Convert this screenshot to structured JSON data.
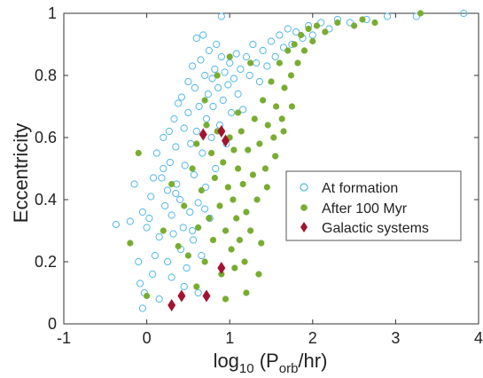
{
  "chart_data": {
    "type": "scatter",
    "xlabel_base": "log",
    "xlabel_sub": "10",
    "xlabel_mid": " (P",
    "xlabel_sub2": "orb",
    "xlabel_end": "/hr)",
    "ylabel": "Eccentricity",
    "xlim": [
      -1,
      4
    ],
    "ylim": [
      0,
      1
    ],
    "xticks": [
      -1,
      0,
      1,
      2,
      3,
      4
    ],
    "yticks": [
      0,
      0.2,
      0.4,
      0.6,
      0.8,
      1
    ],
    "xtick_labels": [
      "-1",
      "0",
      "1",
      "2",
      "3",
      "4"
    ],
    "ytick_labels": [
      "0",
      "0.2",
      "0.4",
      "0.6",
      "0.8",
      "1"
    ],
    "legend_position": "right-middle",
    "colors": {
      "formation": "#4fb8e6",
      "after": "#78ad30",
      "galactic": "#a2142f"
    },
    "series": [
      {
        "name": "At formation",
        "marker": "open-circle",
        "points": [
          [
            -0.37,
            0.32
          ],
          [
            -0.2,
            0.33
          ],
          [
            -0.15,
            0.45
          ],
          [
            -0.1,
            0.2
          ],
          [
            -0.05,
            0.36
          ],
          [
            0.0,
            0.31
          ],
          [
            0.03,
            0.34
          ],
          [
            0.05,
            0.41
          ],
          [
            -0.03,
            0.1
          ],
          [
            -0.08,
            0.13
          ],
          [
            0.07,
            0.16
          ],
          [
            0.1,
            0.22
          ],
          [
            0.12,
            0.55
          ],
          [
            0.15,
            0.28
          ],
          [
            0.18,
            0.47
          ],
          [
            0.2,
            0.6
          ],
          [
            0.22,
            0.38
          ],
          [
            0.25,
            0.43
          ],
          [
            0.27,
            0.62
          ],
          [
            0.28,
            0.52
          ],
          [
            0.3,
            0.35
          ],
          [
            0.32,
            0.29
          ],
          [
            0.33,
            0.66
          ],
          [
            0.35,
            0.57
          ],
          [
            0.36,
            0.45
          ],
          [
            0.38,
            0.71
          ],
          [
            0.4,
            0.4
          ],
          [
            0.41,
            0.24
          ],
          [
            0.42,
            0.73
          ],
          [
            0.44,
            0.31
          ],
          [
            0.45,
            0.63
          ],
          [
            0.46,
            0.51
          ],
          [
            0.48,
            0.18
          ],
          [
            0.5,
            0.78
          ],
          [
            0.5,
            0.68
          ],
          [
            0.52,
            0.36
          ],
          [
            0.53,
            0.58
          ],
          [
            0.55,
            0.83
          ],
          [
            0.56,
            0.27
          ],
          [
            0.57,
            0.48
          ],
          [
            0.58,
            0.76
          ],
          [
            0.6,
            0.62
          ],
          [
            0.6,
            0.92
          ],
          [
            0.62,
            0.39
          ],
          [
            0.63,
            0.7
          ],
          [
            0.65,
            0.85
          ],
          [
            0.66,
            0.22
          ],
          [
            0.67,
            0.55
          ],
          [
            0.68,
            0.93
          ],
          [
            0.7,
            0.8
          ],
          [
            0.71,
            0.44
          ],
          [
            0.72,
            0.66
          ],
          [
            0.74,
            0.74
          ],
          [
            0.75,
            0.88
          ],
          [
            0.76,
            0.34
          ],
          [
            0.78,
            0.6
          ],
          [
            0.79,
            0.79
          ],
          [
            0.8,
            0.7
          ],
          [
            0.82,
            0.82
          ],
          [
            0.83,
            0.5
          ],
          [
            0.84,
            0.9
          ],
          [
            0.86,
            0.76
          ],
          [
            0.88,
            0.64
          ],
          [
            0.9,
            0.86
          ],
          [
            0.92,
            0.72
          ],
          [
            0.94,
            0.81
          ],
          [
            0.96,
            0.58
          ],
          [
            0.98,
            0.77
          ],
          [
            1.0,
            0.84
          ],
          [
            1.02,
            0.68
          ],
          [
            1.05,
            0.79
          ],
          [
            1.08,
            0.87
          ],
          [
            1.1,
            0.74
          ],
          [
            1.13,
            0.82
          ],
          [
            1.16,
            0.69
          ],
          [
            1.2,
            0.86
          ],
          [
            1.24,
            0.8
          ],
          [
            1.28,
            0.9
          ],
          [
            1.32,
            0.84
          ],
          [
            1.36,
            0.78
          ],
          [
            1.4,
            0.88
          ],
          [
            1.45,
            0.83
          ],
          [
            1.5,
            0.91
          ],
          [
            1.55,
            0.86
          ],
          [
            1.6,
            0.93
          ],
          [
            1.65,
            0.89
          ],
          [
            1.7,
            0.95
          ],
          [
            1.75,
            0.9
          ],
          [
            1.8,
            0.94
          ],
          [
            1.88,
            0.92
          ],
          [
            1.95,
            0.96
          ],
          [
            2.0,
            0.93
          ],
          [
            2.1,
            0.97
          ],
          [
            2.2,
            0.95
          ],
          [
            2.3,
            0.98
          ],
          [
            2.45,
            0.97
          ],
          [
            2.65,
            0.98
          ],
          [
            2.9,
            0.99
          ],
          [
            3.25,
            0.99
          ],
          [
            3.82,
            1.0
          ],
          [
            0.9,
            0.99
          ],
          [
            0.3,
            0.15
          ],
          [
            0.15,
            0.08
          ],
          [
            0.45,
            0.12
          ],
          [
            -0.05,
            0.05
          ],
          [
            0.62,
            0.1
          ],
          [
            0.25,
            0.2
          ],
          [
            0.55,
            0.3
          ],
          [
            0.08,
            0.47
          ],
          [
            0.35,
            0.42
          ],
          [
            0.7,
            0.37
          ],
          [
            0.2,
            0.5
          ]
        ]
      },
      {
        "name": "After 100 Myr",
        "marker": "filled-circle",
        "points": [
          [
            -0.1,
            0.55
          ],
          [
            -0.2,
            0.26
          ],
          [
            0.0,
            0.09
          ],
          [
            0.2,
            0.3
          ],
          [
            0.3,
            0.45
          ],
          [
            0.38,
            0.25
          ],
          [
            0.45,
            0.38
          ],
          [
            0.5,
            0.22
          ],
          [
            0.55,
            0.5
          ],
          [
            0.6,
            0.58
          ],
          [
            0.62,
            0.31
          ],
          [
            0.66,
            0.43
          ],
          [
            0.7,
            0.2
          ],
          [
            0.72,
            0.64
          ],
          [
            0.75,
            0.34
          ],
          [
            0.78,
            0.55
          ],
          [
            0.8,
            0.27
          ],
          [
            0.82,
            0.47
          ],
          [
            0.85,
            0.62
          ],
          [
            0.88,
            0.38
          ],
          [
            0.9,
            0.16
          ],
          [
            0.92,
            0.52
          ],
          [
            0.95,
            0.3
          ],
          [
            0.98,
            0.44
          ],
          [
            1.0,
            0.6
          ],
          [
            1.02,
            0.24
          ],
          [
            1.04,
            0.4
          ],
          [
            1.06,
            0.18
          ],
          [
            1.08,
            0.34
          ],
          [
            1.1,
            0.5
          ],
          [
            1.12,
            0.27
          ],
          [
            1.14,
            0.62
          ],
          [
            1.16,
            0.45
          ],
          [
            1.18,
            0.2
          ],
          [
            1.2,
            0.36
          ],
          [
            1.22,
            0.56
          ],
          [
            1.25,
            0.3
          ],
          [
            1.28,
            0.48
          ],
          [
            1.3,
            0.66
          ],
          [
            1.33,
            0.4
          ],
          [
            1.36,
            0.58
          ],
          [
            1.38,
            0.26
          ],
          [
            1.4,
            0.72
          ],
          [
            1.43,
            0.5
          ],
          [
            1.46,
            0.64
          ],
          [
            1.5,
            0.78
          ],
          [
            1.53,
            0.6
          ],
          [
            1.56,
            0.7
          ],
          [
            1.6,
            0.84
          ],
          [
            1.63,
            0.66
          ],
          [
            1.66,
            0.76
          ],
          [
            1.7,
            0.88
          ],
          [
            1.74,
            0.8
          ],
          [
            1.78,
            0.9
          ],
          [
            1.82,
            0.84
          ],
          [
            1.86,
            0.93
          ],
          [
            1.9,
            0.88
          ],
          [
            1.95,
            0.95
          ],
          [
            2.0,
            0.91
          ],
          [
            2.05,
            0.96
          ],
          [
            2.15,
            0.94
          ],
          [
            2.3,
            0.97
          ],
          [
            2.5,
            0.96
          ],
          [
            2.6,
            0.98
          ],
          [
            2.75,
            0.97
          ],
          [
            3.3,
            1.0
          ],
          [
            1.2,
            0.1
          ],
          [
            1.35,
            0.16
          ],
          [
            0.95,
            0.08
          ],
          [
            0.6,
            0.12
          ],
          [
            1.05,
            0.56
          ],
          [
            1.45,
            0.44
          ],
          [
            1.55,
            0.54
          ],
          [
            1.65,
            0.62
          ],
          [
            1.75,
            0.7
          ],
          [
            1.1,
            0.68
          ],
          [
            0.7,
            0.72
          ],
          [
            0.85,
            0.8
          ],
          [
            1.0,
            0.86
          ],
          [
            1.25,
            0.84
          ]
        ]
      },
      {
        "name": "Galactic systems",
        "marker": "diamond",
        "points": [
          [
            0.3,
            0.06
          ],
          [
            0.42,
            0.09
          ],
          [
            0.72,
            0.09
          ],
          [
            0.9,
            0.18
          ],
          [
            0.68,
            0.61
          ],
          [
            0.9,
            0.62
          ],
          [
            0.95,
            0.59
          ]
        ]
      }
    ]
  }
}
